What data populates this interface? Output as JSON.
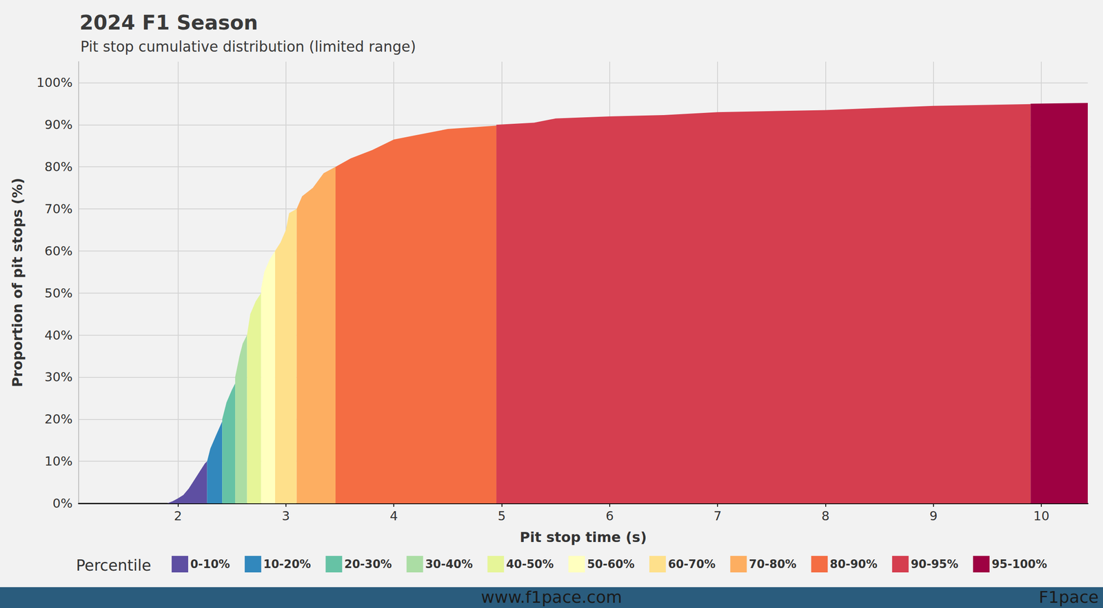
{
  "chart_data": {
    "type": "area",
    "title": "2024 F1 Season",
    "subtitle": "Pit stop cumulative distribution (limited range)",
    "x_label": "Pit stop time (s)",
    "y_label": "Proportion of pit stops (%)",
    "legend_title": "Percentile",
    "legend": "bottom",
    "grid": true,
    "xlim": [
      1.08,
      10.43
    ],
    "xticks": [
      2,
      3,
      4,
      5,
      6,
      7,
      8,
      9,
      10
    ],
    "ylim": [
      0,
      105
    ],
    "yticks": [
      {
        "value": 0,
        "label": "0%"
      },
      {
        "value": 10,
        "label": "10%"
      },
      {
        "value": 20,
        "label": "20%"
      },
      {
        "value": 30,
        "label": "30%"
      },
      {
        "value": 40,
        "label": "40%"
      },
      {
        "value": 50,
        "label": "50%"
      },
      {
        "value": 60,
        "label": "60%"
      },
      {
        "value": 70,
        "label": "70%"
      },
      {
        "value": 80,
        "label": "80%"
      },
      {
        "value": 90,
        "label": "90%"
      },
      {
        "value": 100,
        "label": "100%"
      }
    ],
    "series": [
      {
        "name": "0-10%",
        "color": "#5e4fa2",
        "x": [
          1.9,
          1.95,
          2.0,
          2.05,
          2.1,
          2.15,
          2.2,
          2.25,
          2.27
        ],
        "values": [
          0,
          0.5,
          1.2,
          2,
          3.5,
          5.5,
          7.5,
          9.5,
          10
        ]
      },
      {
        "name": "10-20%",
        "color": "#3288bd",
        "x": [
          2.27,
          2.3,
          2.35,
          2.41
        ],
        "values": [
          10,
          13,
          16,
          19.5
        ]
      },
      {
        "name": "20-30%",
        "color": "#66c2a5",
        "x": [
          2.41,
          2.45,
          2.5,
          2.53
        ],
        "values": [
          20,
          24,
          27,
          28.5
        ]
      },
      {
        "name": "30-40%",
        "color": "#abdda4",
        "x": [
          2.53,
          2.57,
          2.6,
          2.64
        ],
        "values": [
          30,
          35,
          38,
          40
        ]
      },
      {
        "name": "40-50%",
        "color": "#e6f598",
        "x": [
          2.64,
          2.67,
          2.72,
          2.77
        ],
        "values": [
          40,
          45,
          48,
          50
        ]
      },
      {
        "name": "50-60%",
        "color": "#ffffbf",
        "x": [
          2.77,
          2.8,
          2.85,
          2.9
        ],
        "values": [
          51,
          55,
          58,
          60
        ]
      },
      {
        "name": "60-70%",
        "color": "#fee08b",
        "x": [
          2.9,
          2.95,
          3.0,
          3.03,
          3.1
        ],
        "values": [
          60,
          62,
          65,
          69,
          70
        ]
      },
      {
        "name": "70-80%",
        "color": "#fdae61",
        "x": [
          3.1,
          3.15,
          3.25,
          3.35,
          3.46
        ],
        "values": [
          70,
          73,
          75,
          78.5,
          80
        ]
      },
      {
        "name": "80-90%",
        "color": "#f46d43",
        "x": [
          3.46,
          3.6,
          3.8,
          4.0,
          4.2,
          4.5,
          4.95
        ],
        "values": [
          80,
          82,
          84,
          86.5,
          87.5,
          89,
          89.8
        ]
      },
      {
        "name": "90-95%",
        "color": "#d53e4f",
        "x": [
          4.95,
          5.3,
          5.5,
          6.0,
          6.5,
          7.0,
          8.0,
          8.5,
          9.0,
          9.9
        ],
        "values": [
          90,
          90.5,
          91.5,
          92,
          92.3,
          93,
          93.5,
          94,
          94.5,
          94.9
        ]
      },
      {
        "name": "95-100%",
        "color": "#9e0142",
        "x": [
          9.9,
          10.43
        ],
        "values": [
          95,
          95.2
        ]
      }
    ]
  },
  "footer": {
    "url": "www.f1pace.com",
    "brand": "F1pace"
  }
}
